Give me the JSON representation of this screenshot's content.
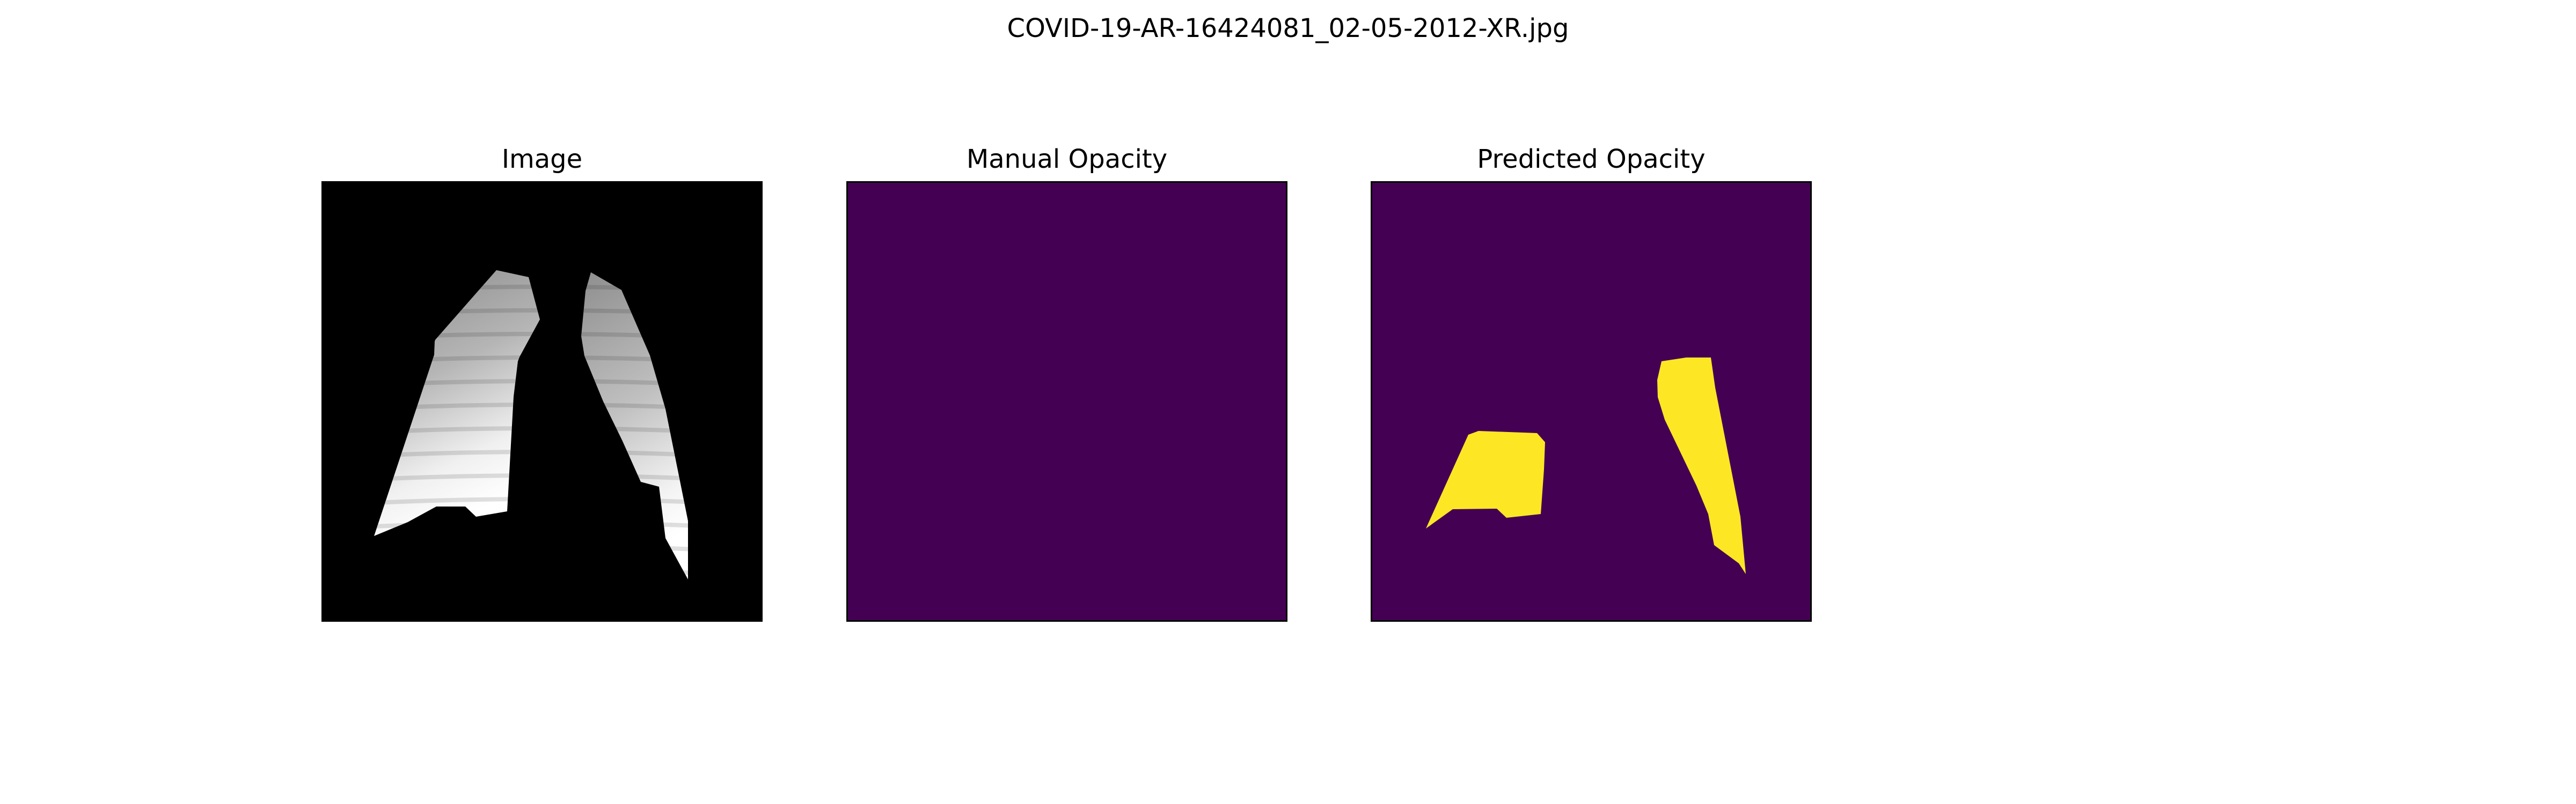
{
  "figure": {
    "title": "COVID-19-AR-16424081_02-05-2012-XR.jpg"
  },
  "panels": [
    {
      "title": "Image",
      "content": "chest x-ray, lungs segmented on black background",
      "colormap": "gray"
    },
    {
      "title": "Manual Opacity",
      "content": "empty mask",
      "colormap": "viridis"
    },
    {
      "title": "Predicted Opacity",
      "content": "mask with two opacity regions",
      "colormap": "viridis"
    }
  ],
  "colors": {
    "background": "#000000",
    "mask_background": "#440154",
    "mask_foreground": "#fde725",
    "frame": "#000000"
  }
}
